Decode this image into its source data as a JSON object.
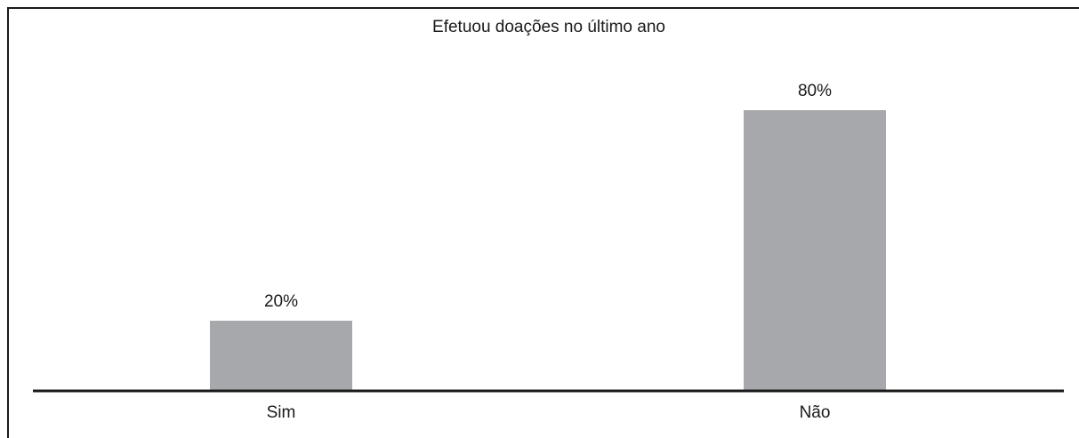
{
  "chart_data": {
    "type": "bar",
    "title": "Efetuou doações no último ano",
    "xlabel": "",
    "ylabel": "",
    "categories": [
      "Sim",
      "Não"
    ],
    "values": [
      20,
      80
    ],
    "data_labels": [
      "20%",
      "80%"
    ],
    "ylim": [
      0,
      100
    ],
    "grid": false,
    "legend": "none",
    "bar_color": "#a7a8ab",
    "axis_color": "#1a1a1a",
    "border_color": "#1a1a1a"
  }
}
